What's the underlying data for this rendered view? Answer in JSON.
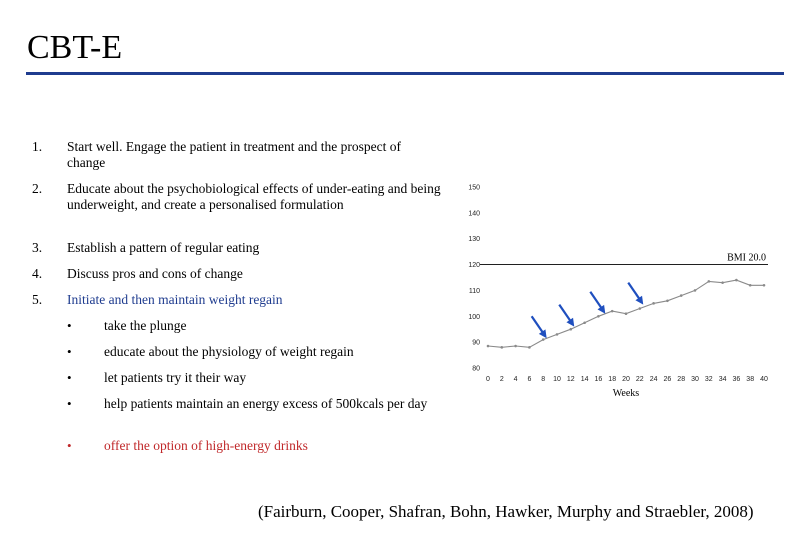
{
  "slide": {
    "title": "CBT-E",
    "citation": "(Fairburn, Cooper, Shafran, Bohn, Hawker, Murphy and Straebler, 2008)"
  },
  "steps": [
    {
      "num": "1.",
      "text": "Start well.  Engage the patient in treatment and the prospect of change"
    },
    {
      "num": "2.",
      "text": "Educate about the psychobiological effects of under-eating and being underweight, and create a personalised formulation"
    },
    {
      "num": "3.",
      "text": "Establish a pattern of regular eating"
    },
    {
      "num": "4.",
      "text": "Discuss pros and cons of change"
    },
    {
      "num": "5.",
      "text": "Initiate and then maintain weight regain"
    }
  ],
  "sub_bullets": [
    {
      "bullet": "•",
      "text": "take the plunge"
    },
    {
      "bullet": "•",
      "text": "educate about the physiology of  weight regain"
    },
    {
      "bullet": "•",
      "text": "let patients try it their way"
    },
    {
      "bullet": "•",
      "text": "help patients maintain an energy excess of 500kcals per day"
    },
    {
      "bullet": "•",
      "text": "offer the option of high-energy drinks"
    }
  ],
  "colors": {
    "accent_rule": "#1f3c8f",
    "step5_text": "#1f3c8f",
    "last_bullet": "#c0282a",
    "arrow": "#1f4fbf",
    "line": "#8a8a8a",
    "marker": "#8a8a8a"
  },
  "chart_data": {
    "type": "line",
    "xlabel": "Weeks",
    "ylabel": "",
    "xlim": [
      0,
      40
    ],
    "ylim": [
      80,
      150
    ],
    "x_ticks": [
      "0",
      "2",
      "4",
      "6",
      "8",
      "10",
      "12",
      "14",
      "16",
      "18",
      "20",
      "22",
      "24",
      "26",
      "28",
      "30",
      "32",
      "34",
      "36",
      "38",
      "40"
    ],
    "y_ticks": [
      "80",
      "90",
      "100",
      "110",
      "120",
      "130",
      "140",
      "150"
    ],
    "reference_line": {
      "y": 120,
      "label": "BMI 20.0"
    },
    "grid": false,
    "series": [
      {
        "x": [
          0,
          2,
          4,
          6,
          8,
          10,
          12,
          14,
          16,
          18,
          20,
          22,
          24,
          26,
          28,
          30,
          32,
          34,
          36,
          38,
          40
        ],
        "values": [
          88.5,
          88,
          88.5,
          88,
          91,
          93,
          95,
          97.5,
          100,
          102,
          101,
          103,
          105,
          106,
          108,
          110,
          113.5,
          113,
          114,
          112,
          112
        ]
      }
    ],
    "arrows": [
      {
        "label": "",
        "x": 8.5,
        "y": 91.5
      },
      {
        "label": "",
        "x": 12.5,
        "y": 96
      },
      {
        "label": "",
        "x": 17,
        "y": 101
      },
      {
        "label": "",
        "x": 22.5,
        "y": 104.5
      }
    ]
  }
}
